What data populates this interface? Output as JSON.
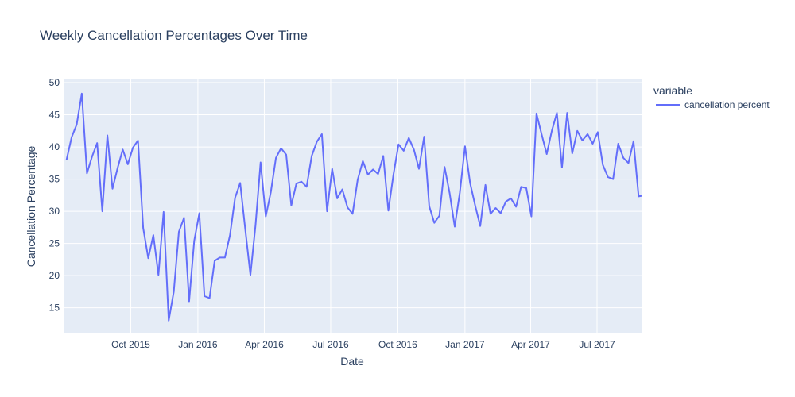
{
  "chart_data": {
    "type": "line",
    "title": "Weekly Cancellation Percentages Over Time",
    "xlabel": "Date",
    "ylabel": "Cancellation Percentage",
    "x_range": [
      "2015-07-01",
      "2017-08-31"
    ],
    "ylim": [
      11,
      50.5
    ],
    "x_ticks": [
      {
        "date": "2015-10-01",
        "label": "Oct 2015"
      },
      {
        "date": "2016-01-01",
        "label": "Jan 2016"
      },
      {
        "date": "2016-04-01",
        "label": "Apr 2016"
      },
      {
        "date": "2016-07-01",
        "label": "Jul 2016"
      },
      {
        "date": "2016-10-01",
        "label": "Oct 2016"
      },
      {
        "date": "2017-01-01",
        "label": "Jan 2017"
      },
      {
        "date": "2017-04-01",
        "label": "Apr 2017"
      },
      {
        "date": "2017-07-01",
        "label": "Jul 2017"
      }
    ],
    "y_ticks": [
      15,
      20,
      25,
      30,
      35,
      40,
      45,
      50
    ],
    "grid": true,
    "legend": {
      "title": "variable",
      "position": "top-right"
    },
    "series": [
      {
        "name": "cancellation percent",
        "color": "#636efa",
        "x": [
          "2015-07-05",
          "2015-07-12",
          "2015-07-19",
          "2015-07-26",
          "2015-08-02",
          "2015-08-09",
          "2015-08-16",
          "2015-08-23",
          "2015-08-30",
          "2015-09-06",
          "2015-09-13",
          "2015-09-20",
          "2015-09-27",
          "2015-10-04",
          "2015-10-11",
          "2015-10-18",
          "2015-10-25",
          "2015-11-01",
          "2015-11-08",
          "2015-11-15",
          "2015-11-22",
          "2015-11-29",
          "2015-12-06",
          "2015-12-13",
          "2015-12-20",
          "2015-12-27",
          "2016-01-03",
          "2016-01-10",
          "2016-01-17",
          "2016-01-24",
          "2016-01-31",
          "2016-02-07",
          "2016-02-14",
          "2016-02-21",
          "2016-02-28",
          "2016-03-06",
          "2016-03-13",
          "2016-03-20",
          "2016-03-27",
          "2016-04-03",
          "2016-04-10",
          "2016-04-17",
          "2016-04-24",
          "2016-05-01",
          "2016-05-08",
          "2016-05-15",
          "2016-05-22",
          "2016-05-29",
          "2016-06-05",
          "2016-06-12",
          "2016-06-19",
          "2016-06-26",
          "2016-07-03",
          "2016-07-10",
          "2016-07-17",
          "2016-07-24",
          "2016-07-31",
          "2016-08-07",
          "2016-08-14",
          "2016-08-21",
          "2016-08-28",
          "2016-09-04",
          "2016-09-11",
          "2016-09-18",
          "2016-09-25",
          "2016-10-02",
          "2016-10-09",
          "2016-10-16",
          "2016-10-23",
          "2016-10-30",
          "2016-11-06",
          "2016-11-13",
          "2016-11-20",
          "2016-11-27",
          "2016-12-04",
          "2016-12-11",
          "2016-12-18",
          "2016-12-25",
          "2017-01-01",
          "2017-01-08",
          "2017-01-15",
          "2017-01-22",
          "2017-01-29",
          "2017-02-05",
          "2017-02-12",
          "2017-02-19",
          "2017-02-26",
          "2017-03-05",
          "2017-03-12",
          "2017-03-19",
          "2017-03-26",
          "2017-04-02",
          "2017-04-09",
          "2017-04-16",
          "2017-04-23",
          "2017-04-30",
          "2017-05-07",
          "2017-05-14",
          "2017-05-21",
          "2017-05-28",
          "2017-06-04",
          "2017-06-11",
          "2017-06-18",
          "2017-06-25",
          "2017-07-02",
          "2017-07-09",
          "2017-07-16",
          "2017-07-23",
          "2017-07-30",
          "2017-08-06",
          "2017-08-13",
          "2017-08-20",
          "2017-08-27",
          "2017-08-31"
        ],
        "y": [
          38.0,
          41.5,
          43.5,
          48.3,
          35.9,
          38.5,
          40.6,
          30.0,
          41.8,
          33.5,
          36.7,
          39.6,
          37.3,
          39.9,
          41.0,
          27.4,
          22.7,
          26.3,
          20.1,
          29.9,
          13.0,
          17.5,
          26.8,
          29.0,
          16.0,
          25.4,
          29.7,
          16.8,
          16.5,
          22.3,
          22.8,
          22.8,
          26.3,
          32.1,
          34.4,
          27.1,
          20.1,
          27.8,
          37.6,
          29.2,
          33.0,
          38.3,
          39.8,
          38.8,
          30.9,
          34.3,
          34.6,
          33.8,
          38.6,
          40.8,
          42.0,
          30.0,
          36.6,
          32.0,
          33.4,
          30.6,
          29.6,
          34.9,
          37.8,
          35.7,
          36.5,
          35.8,
          38.6,
          30.1,
          35.7,
          40.4,
          39.4,
          41.4,
          39.6,
          36.6,
          41.6,
          30.8,
          28.2,
          29.3,
          36.9,
          32.8,
          27.6,
          32.9,
          40.1,
          34.4,
          30.9,
          27.7,
          34.1,
          29.6,
          30.5,
          29.7,
          31.5,
          32.0,
          30.7,
          33.8,
          33.6,
          29.2,
          45.2,
          42.0,
          38.9,
          42.5,
          45.3,
          36.8,
          45.3,
          39.0,
          42.5,
          41.0,
          42.0,
          40.5,
          42.3,
          37.2,
          35.3,
          35.0,
          40.5,
          38.3,
          37.5,
          40.9,
          32.3,
          32.4
        ]
      }
    ]
  }
}
